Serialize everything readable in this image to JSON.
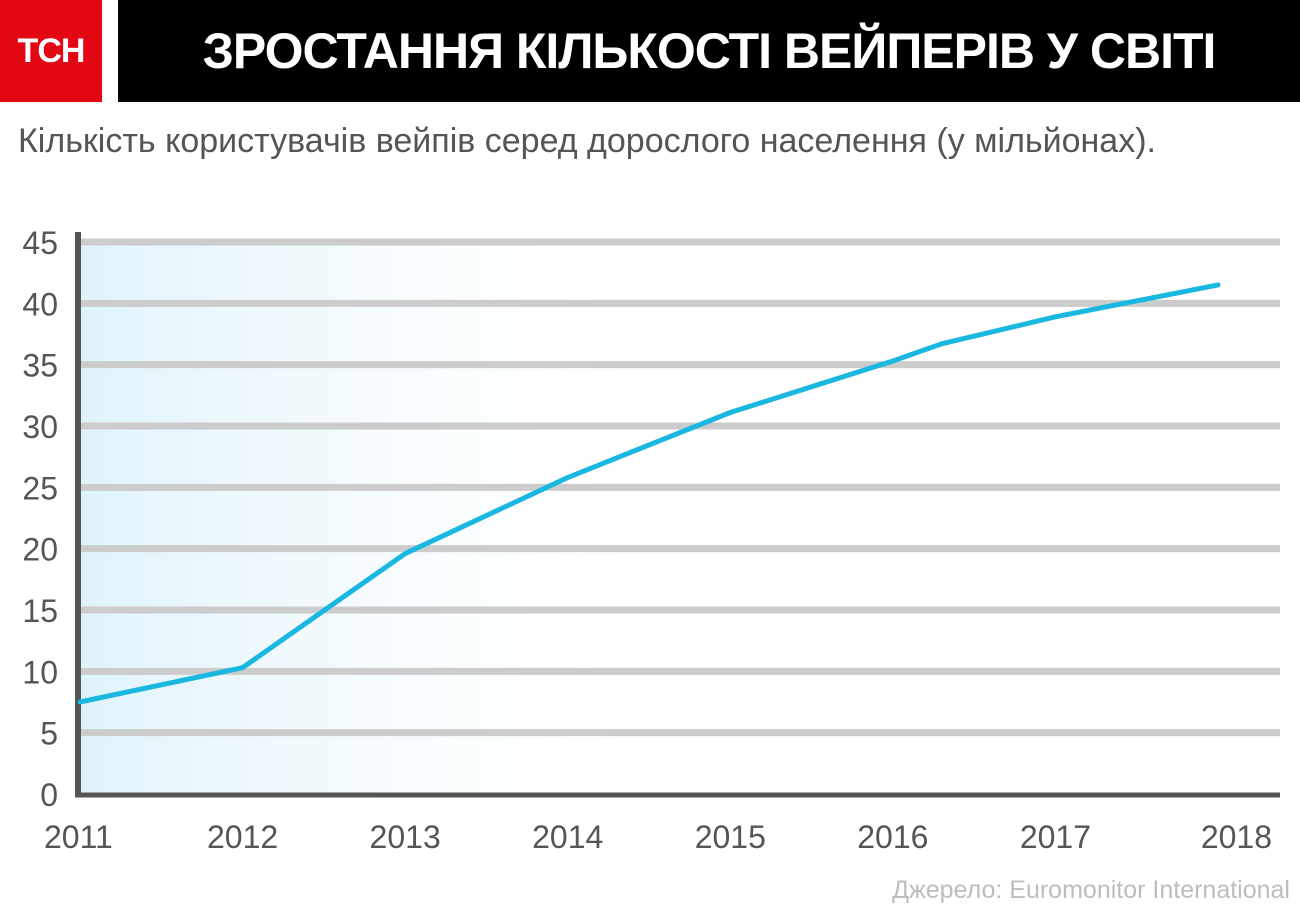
{
  "logo": {
    "text": "ТСН",
    "color": "#e30613"
  },
  "title": "ЗРОСТАННЯ КІЛЬКОСТІ ВЕЙПЕРІВ У СВІТІ",
  "subtitle": "Кількість користувачів вейпів серед дорослого населення (у мільйонах).",
  "source": "Джерело: Euromonitor International",
  "colors": {
    "line": "#1ab7e0",
    "grid": "#cccccc",
    "axis": "#555555",
    "tick_text": "#555555"
  },
  "chart_data": {
    "type": "line",
    "title": "",
    "xlabel": "",
    "ylabel": "",
    "x": [
      "2011",
      "2012",
      "2013",
      "2014",
      "2015",
      "2016",
      "2017",
      "2018"
    ],
    "xlim": [
      2011,
      2018
    ],
    "ylim": [
      0,
      45
    ],
    "yticks": [
      0,
      5,
      10,
      15,
      20,
      25,
      30,
      35,
      40,
      45
    ],
    "grid": true,
    "legend": "none",
    "series": [
      {
        "points": [
          {
            "x": 2011,
            "y": 7.5
          },
          {
            "x": 2012,
            "y": 10.3
          },
          {
            "x": 2013,
            "y": 19.6
          },
          {
            "x": 2014,
            "y": 25.8
          },
          {
            "x": 2015,
            "y": 31.1
          },
          {
            "x": 2016,
            "y": 35.3
          },
          {
            "x": 2016.3,
            "y": 36.7
          },
          {
            "x": 2017,
            "y": 38.9
          },
          {
            "x": 2018,
            "y": 41.5
          }
        ]
      }
    ]
  }
}
